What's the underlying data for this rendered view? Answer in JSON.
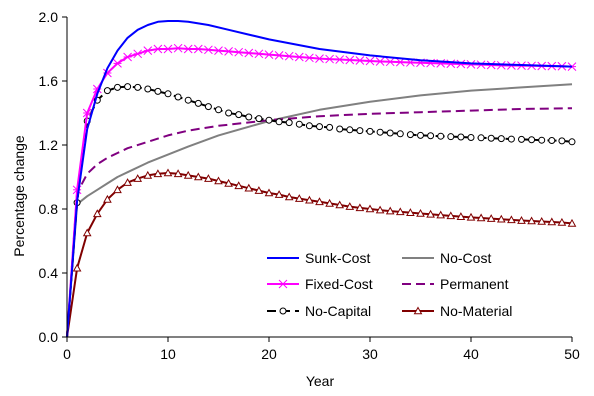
{
  "chart_data": {
    "type": "line",
    "title": "",
    "xlabel": "Year",
    "ylabel": "Percentage change",
    "xlim": [
      0,
      50
    ],
    "ylim": [
      0.0,
      2.0
    ],
    "x_ticks": [
      "0",
      "10",
      "20",
      "30",
      "40",
      "50"
    ],
    "y_ticks": [
      "0.0",
      "0.4",
      "0.8",
      "1.2",
      "1.6",
      "2.0"
    ],
    "grid": false,
    "legend": {
      "position": "bottom-right",
      "columns": 2
    },
    "series": [
      {
        "name": "Sunk-Cost",
        "color": "#0000FF",
        "dash": "solid",
        "marker": "none",
        "x": [
          0,
          1,
          2,
          3,
          4,
          5,
          6,
          7,
          8,
          9,
          10,
          11,
          12,
          14,
          16,
          18,
          20,
          25,
          30,
          35,
          40,
          45,
          50
        ],
        "y": [
          0.0,
          0.85,
          1.3,
          1.52,
          1.68,
          1.79,
          1.87,
          1.92,
          1.95,
          1.97,
          1.975,
          1.975,
          1.97,
          1.95,
          1.92,
          1.89,
          1.86,
          1.8,
          1.76,
          1.73,
          1.71,
          1.7,
          1.69
        ]
      },
      {
        "name": "No-Cost",
        "color": "#808080",
        "dash": "solid",
        "marker": "none",
        "x": [
          0,
          1,
          2,
          3,
          4,
          5,
          6,
          8,
          10,
          12,
          15,
          20,
          25,
          30,
          35,
          40,
          45,
          50
        ],
        "y": [
          0.0,
          0.83,
          0.88,
          0.92,
          0.96,
          1.0,
          1.03,
          1.09,
          1.14,
          1.19,
          1.26,
          1.35,
          1.42,
          1.47,
          1.51,
          1.54,
          1.56,
          1.58
        ]
      },
      {
        "name": "Fixed-Cost",
        "color": "#FF00FF",
        "dash": "solid",
        "marker": "star",
        "x": [
          0,
          1,
          2,
          3,
          4,
          5,
          6,
          7,
          8,
          9,
          10,
          11,
          12,
          13,
          14,
          15,
          16,
          17,
          18,
          19,
          20,
          21,
          22,
          23,
          24,
          25,
          26,
          27,
          28,
          29,
          30,
          31,
          32,
          33,
          34,
          35,
          36,
          37,
          38,
          39,
          40,
          41,
          42,
          43,
          44,
          45,
          46,
          47,
          48,
          49,
          50
        ],
        "y": [
          0.0,
          0.92,
          1.4,
          1.55,
          1.65,
          1.71,
          1.75,
          1.77,
          1.79,
          1.8,
          1.8,
          1.805,
          1.8,
          1.8,
          1.795,
          1.79,
          1.785,
          1.78,
          1.775,
          1.77,
          1.765,
          1.76,
          1.755,
          1.75,
          1.745,
          1.74,
          1.737,
          1.734,
          1.731,
          1.728,
          1.725,
          1.722,
          1.72,
          1.718,
          1.716,
          1.714,
          1.712,
          1.71,
          1.708,
          1.706,
          1.704,
          1.702,
          1.7,
          1.698,
          1.697,
          1.696,
          1.695,
          1.694,
          1.693,
          1.692,
          1.69
        ]
      },
      {
        "name": "Permanent",
        "color": "#800080",
        "dash": "dashed",
        "marker": "none",
        "x": [
          0,
          1,
          2,
          3,
          4,
          5,
          6,
          8,
          10,
          12,
          15,
          20,
          25,
          30,
          35,
          40,
          45,
          50
        ],
        "y": [
          0.0,
          0.9,
          1.02,
          1.08,
          1.12,
          1.15,
          1.18,
          1.22,
          1.26,
          1.29,
          1.32,
          1.355,
          1.38,
          1.395,
          1.405,
          1.415,
          1.425,
          1.43
        ]
      },
      {
        "name": "No-Capital",
        "color": "#000000",
        "dash": "dashed",
        "marker": "circle",
        "x": [
          0,
          1,
          2,
          3,
          4,
          5,
          6,
          7,
          8,
          9,
          10,
          11,
          12,
          13,
          14,
          15,
          16,
          17,
          18,
          19,
          20,
          21,
          22,
          23,
          24,
          25,
          26,
          27,
          28,
          29,
          30,
          31,
          32,
          33,
          34,
          35,
          36,
          37,
          38,
          39,
          40,
          41,
          42,
          43,
          44,
          45,
          46,
          47,
          48,
          49,
          50
        ],
        "y": [
          0.0,
          0.84,
          1.35,
          1.48,
          1.54,
          1.56,
          1.565,
          1.56,
          1.55,
          1.535,
          1.52,
          1.5,
          1.48,
          1.46,
          1.44,
          1.42,
          1.4,
          1.39,
          1.375,
          1.365,
          1.355,
          1.345,
          1.34,
          1.33,
          1.32,
          1.315,
          1.31,
          1.3,
          1.295,
          1.29,
          1.285,
          1.28,
          1.275,
          1.27,
          1.265,
          1.26,
          1.258,
          1.255,
          1.252,
          1.25,
          1.247,
          1.245,
          1.242,
          1.24,
          1.237,
          1.235,
          1.233,
          1.23,
          1.228,
          1.226,
          1.22
        ]
      },
      {
        "name": "No-Material",
        "color": "#800000",
        "dash": "solid",
        "marker": "triangle",
        "x": [
          0,
          1,
          2,
          3,
          4,
          5,
          6,
          7,
          8,
          9,
          10,
          11,
          12,
          13,
          14,
          15,
          16,
          17,
          18,
          19,
          20,
          21,
          22,
          23,
          24,
          25,
          26,
          27,
          28,
          29,
          30,
          31,
          32,
          33,
          34,
          35,
          36,
          37,
          38,
          39,
          40,
          41,
          42,
          43,
          44,
          45,
          46,
          47,
          48,
          49,
          50
        ],
        "y": [
          0.0,
          0.43,
          0.65,
          0.77,
          0.86,
          0.92,
          0.965,
          0.99,
          1.01,
          1.02,
          1.025,
          1.02,
          1.01,
          1.0,
          0.99,
          0.975,
          0.96,
          0.945,
          0.93,
          0.915,
          0.9,
          0.89,
          0.875,
          0.865,
          0.855,
          0.845,
          0.835,
          0.825,
          0.815,
          0.807,
          0.8,
          0.793,
          0.787,
          0.782,
          0.777,
          0.772,
          0.767,
          0.762,
          0.757,
          0.752,
          0.748,
          0.744,
          0.74,
          0.736,
          0.732,
          0.728,
          0.725,
          0.722,
          0.719,
          0.716,
          0.71
        ]
      }
    ]
  }
}
